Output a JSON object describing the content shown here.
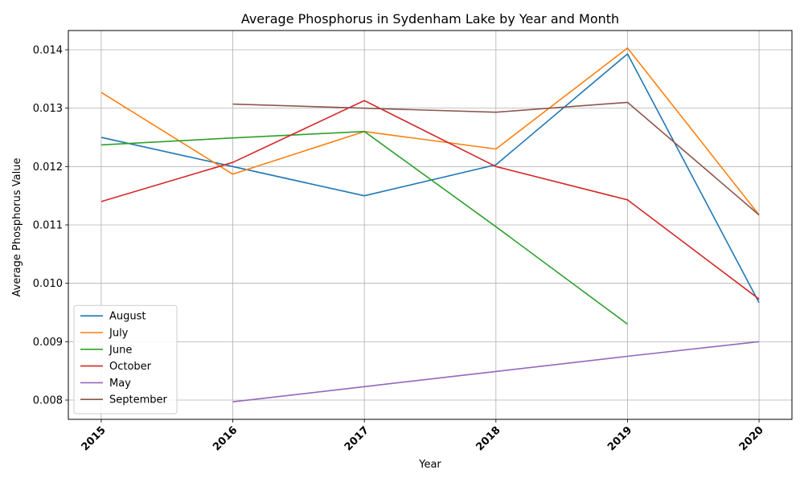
{
  "chart_data": {
    "type": "line",
    "title": "Average Phosphorus in Sydenham Lake by Year and Month",
    "xlabel": "Year",
    "ylabel": "Average Phosphorus Value",
    "x": [
      2015,
      2016,
      2017,
      2018,
      2019,
      2020
    ],
    "x_tick_labels": [
      "2015",
      "2016",
      "2017",
      "2018",
      "2019",
      "2020"
    ],
    "xlim": [
      2014.75,
      2020.25
    ],
    "ylim": [
      0.00767,
      0.01433
    ],
    "y_ticks": [
      0.008,
      0.009,
      0.01,
      0.011,
      0.012,
      0.013,
      0.014
    ],
    "y_tick_labels": [
      "0.008",
      "0.009",
      "0.010",
      "0.011",
      "0.012",
      "0.013",
      "0.014"
    ],
    "grid": true,
    "legend_position": "lower-left",
    "series": [
      {
        "name": "August",
        "color": "#1f77b4",
        "values": [
          0.0125,
          0.012,
          0.0115,
          0.01203,
          0.01393,
          0.00967
        ]
      },
      {
        "name": "July",
        "color": "#ff7f0e",
        "values": [
          0.01327,
          0.01187,
          0.0126,
          0.0123,
          0.01403,
          0.01117
        ]
      },
      {
        "name": "June",
        "color": "#2ca02c",
        "values": [
          0.01237,
          0.01249,
          0.0126,
          0.01097,
          0.0093,
          null
        ]
      },
      {
        "name": "October",
        "color": "#d62728",
        "values": [
          0.0114,
          0.01207,
          0.01313,
          0.012,
          0.01143,
          0.00973
        ]
      },
      {
        "name": "May",
        "color": "#9467bd",
        "values": [
          null,
          0.00797,
          0.00823,
          0.00849,
          0.00875,
          0.009
        ]
      },
      {
        "name": "September",
        "color": "#8c564b",
        "values": [
          null,
          0.01307,
          0.013,
          0.01293,
          0.0131,
          0.01117
        ]
      }
    ]
  }
}
